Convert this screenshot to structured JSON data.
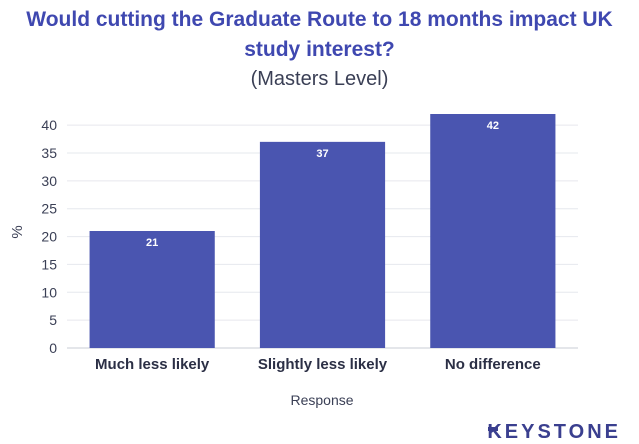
{
  "chart_data": {
    "type": "bar",
    "title_line1": "Would cutting the Graduate Route to 18 months impact UK",
    "title_line2": "study interest?",
    "subtitle": "(Masters Level)",
    "xlabel": "Response",
    "ylabel": "%",
    "categories": [
      "Much less likely",
      "Slightly less likely",
      "No difference"
    ],
    "values": [
      21,
      37,
      42
    ],
    "data_labels": [
      "21",
      "37",
      "42"
    ],
    "ylim": [
      0,
      42
    ],
    "yticks": [
      0,
      5,
      10,
      15,
      20,
      25,
      30,
      35,
      40
    ],
    "grid": true,
    "bar_color": "#4a55b0"
  },
  "branding": {
    "text": "KEYSTONE"
  }
}
